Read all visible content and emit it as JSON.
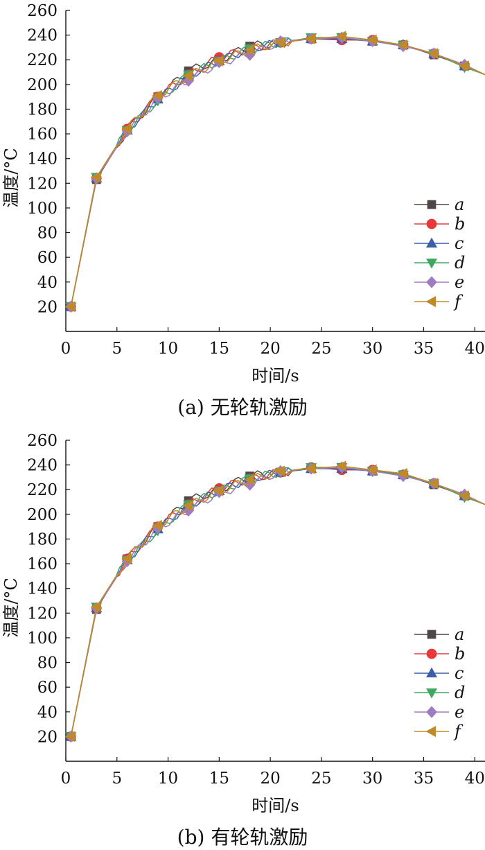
{
  "figure": {
    "captions": [
      "(a)  无轮轨激励",
      "(b)  有轮轨激励"
    ]
  },
  "colors": {
    "a": "#4d4745",
    "b": "#e8393a",
    "c": "#3a5ea8",
    "d": "#3fa860",
    "e": "#a07bc2",
    "f": "#c08a26"
  },
  "chart_data": [
    {
      "type": "line",
      "title": "",
      "xlabel": "时间/s",
      "ylabel": "温度/°C",
      "xlim": [
        0,
        41
      ],
      "ylim": [
        0,
        260
      ],
      "xticks": [
        0,
        5,
        10,
        15,
        20,
        25,
        30,
        35,
        40
      ],
      "yticks": [
        20,
        40,
        60,
        80,
        100,
        120,
        140,
        160,
        180,
        200,
        220,
        240,
        260
      ],
      "x_tick_labels": [
        "0",
        "5",
        "10",
        "15",
        "20",
        "25",
        "30",
        "35",
        "40"
      ],
      "y_tick_labels": [
        "20",
        "40",
        "60",
        "80",
        "100",
        "120",
        "140",
        "160",
        "180",
        "200",
        "220",
        "240",
        "260"
      ],
      "grid": false,
      "legend_position": "lower-right",
      "series": [
        {
          "name": "a",
          "marker": "square",
          "x": [
            0.5,
            3,
            6,
            9,
            12,
            15,
            18,
            21,
            24,
            27,
            30,
            33,
            36,
            39,
            41
          ],
          "y": [
            20,
            123,
            163,
            190,
            211,
            220,
            231,
            234,
            237,
            238,
            235,
            232,
            224,
            215,
            208
          ]
        },
        {
          "name": "b",
          "marker": "circle",
          "x": [
            0.5,
            3,
            6,
            9,
            12,
            15,
            18,
            21,
            24,
            27,
            30,
            33,
            36,
            39,
            41
          ],
          "y": [
            20,
            124,
            164,
            190,
            208,
            222,
            229,
            234,
            237,
            236,
            236,
            232,
            225,
            215,
            208
          ]
        },
        {
          "name": "c",
          "marker": "triangle-up",
          "x": [
            0.5,
            3,
            6,
            9,
            12,
            15,
            18,
            21,
            24,
            27,
            30,
            33,
            36,
            39,
            41
          ],
          "y": [
            20,
            124,
            163,
            188,
            207,
            219,
            229,
            234,
            237,
            237,
            235,
            232,
            225,
            215,
            208
          ]
        },
        {
          "name": "d",
          "marker": "triangle-down",
          "x": [
            0.5,
            3,
            6,
            9,
            12,
            15,
            18,
            21,
            24,
            27,
            30,
            33,
            36,
            39,
            41
          ],
          "y": [
            20,
            125,
            163,
            187,
            208,
            219,
            229,
            234,
            238,
            238,
            235,
            232,
            225,
            214,
            208
          ]
        },
        {
          "name": "e",
          "marker": "diamond",
          "x": [
            0.5,
            3,
            6,
            9,
            12,
            15,
            18,
            21,
            24,
            27,
            30,
            33,
            36,
            39,
            41
          ],
          "y": [
            20,
            124,
            162,
            189,
            203,
            218,
            224,
            235,
            237,
            238,
            235,
            231,
            225,
            216,
            208
          ]
        },
        {
          "name": "f",
          "marker": "triangle-left",
          "x": [
            0.5,
            3,
            6,
            9,
            12,
            15,
            18,
            21,
            24,
            27,
            30,
            33,
            36,
            39,
            41
          ],
          "y": [
            20,
            125,
            164,
            191,
            207,
            219,
            228,
            234,
            237,
            239,
            236,
            232,
            225,
            215,
            208
          ]
        }
      ]
    },
    {
      "type": "line",
      "title": "",
      "xlabel": "时间/s",
      "ylabel": "温度/°C",
      "xlim": [
        0,
        41
      ],
      "ylim": [
        0,
        260
      ],
      "xticks": [
        0,
        5,
        10,
        15,
        20,
        25,
        30,
        35,
        40
      ],
      "yticks": [
        20,
        40,
        60,
        80,
        100,
        120,
        140,
        160,
        180,
        200,
        220,
        240,
        260
      ],
      "x_tick_labels": [
        "0",
        "5",
        "10",
        "15",
        "20",
        "25",
        "30",
        "35",
        "40"
      ],
      "y_tick_labels": [
        "20",
        "40",
        "60",
        "80",
        "100",
        "120",
        "140",
        "160",
        "180",
        "200",
        "220",
        "240",
        "260"
      ],
      "grid": false,
      "legend_position": "lower-right",
      "series": [
        {
          "name": "a",
          "marker": "square",
          "x": [
            0.5,
            3,
            6,
            9,
            12,
            15,
            18,
            21,
            24,
            27,
            30,
            33,
            36,
            39,
            41
          ],
          "y": [
            20,
            123,
            164,
            190,
            211,
            220,
            231,
            234,
            237,
            238,
            235,
            232,
            224,
            215,
            208
          ]
        },
        {
          "name": "b",
          "marker": "circle",
          "x": [
            0.5,
            3,
            6,
            9,
            12,
            15,
            18,
            21,
            24,
            27,
            30,
            33,
            36,
            39,
            41
          ],
          "y": [
            20,
            124,
            164,
            190,
            208,
            221,
            229,
            234,
            238,
            236,
            236,
            232,
            225,
            215,
            208
          ]
        },
        {
          "name": "c",
          "marker": "triangle-up",
          "x": [
            0.5,
            3,
            6,
            9,
            12,
            15,
            18,
            21,
            24,
            27,
            30,
            33,
            36,
            39,
            41
          ],
          "y": [
            20,
            124,
            163,
            188,
            207,
            219,
            229,
            234,
            237,
            237,
            235,
            232,
            225,
            215,
            208
          ]
        },
        {
          "name": "d",
          "marker": "triangle-down",
          "x": [
            0.5,
            3,
            6,
            9,
            12,
            15,
            18,
            21,
            24,
            27,
            30,
            33,
            36,
            39,
            41
          ],
          "y": [
            20,
            125,
            163,
            187,
            208,
            219,
            229,
            234,
            238,
            238,
            235,
            232,
            225,
            214,
            208
          ]
        },
        {
          "name": "e",
          "marker": "diamond",
          "x": [
            0.5,
            3,
            6,
            9,
            12,
            15,
            18,
            21,
            24,
            27,
            30,
            33,
            36,
            39,
            41
          ],
          "y": [
            20,
            124,
            162,
            189,
            203,
            218,
            224,
            235,
            237,
            238,
            235,
            231,
            225,
            216,
            208
          ]
        },
        {
          "name": "f",
          "marker": "triangle-left",
          "x": [
            0.5,
            3,
            6,
            9,
            12,
            15,
            18,
            21,
            24,
            27,
            30,
            33,
            36,
            39,
            41
          ],
          "y": [
            20,
            125,
            164,
            191,
            207,
            219,
            228,
            235,
            237,
            239,
            236,
            233,
            225,
            215,
            208
          ]
        }
      ]
    }
  ]
}
